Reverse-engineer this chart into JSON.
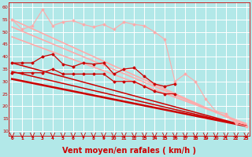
{
  "background_color": "#b2e8e8",
  "grid_color": "#ffffff",
  "xlabel": "Vent moyen/en rafales ( km/h )",
  "xlabel_color": "#cc0000",
  "xlabel_fontsize": 7,
  "tick_color": "#cc0000",
  "ylabel_ticks": [
    10,
    15,
    20,
    25,
    30,
    35,
    40,
    45,
    50,
    55,
    60
  ],
  "xlabel_ticks": [
    0,
    1,
    2,
    3,
    4,
    5,
    6,
    7,
    8,
    9,
    10,
    11,
    12,
    13,
    14,
    15,
    16,
    17,
    18,
    19,
    20,
    21,
    22,
    23
  ],
  "xlim": [
    -0.3,
    23.3
  ],
  "ylim": [
    8,
    62
  ],
  "lines": [
    {
      "x": [
        0,
        1,
        2,
        3,
        4,
        5,
        6,
        7,
        8,
        9,
        10,
        11,
        12,
        13,
        14,
        15,
        16,
        17,
        18,
        19,
        20,
        21,
        22,
        23
      ],
      "y": [
        55,
        51,
        52.5,
        59,
        52.5,
        54,
        54.5,
        53,
        52,
        53,
        51,
        54,
        53,
        52.5,
        50,
        47,
        30,
        33,
        30,
        23,
        18,
        17,
        13,
        12
      ],
      "color": "#ffaaaa",
      "linewidth": 0.8,
      "marker": "D",
      "markersize": 1.5,
      "linestyle": "-"
    },
    {
      "x": [
        0,
        23
      ],
      "y": [
        55,
        12
      ],
      "color": "#ffaaaa",
      "linewidth": 1.2,
      "marker": null,
      "markersize": 0,
      "linestyle": "-"
    },
    {
      "x": [
        0,
        23
      ],
      "y": [
        52,
        12.5
      ],
      "color": "#ffaaaa",
      "linewidth": 1.2,
      "marker": null,
      "markersize": 0,
      "linestyle": "-"
    },
    {
      "x": [
        0,
        23
      ],
      "y": [
        48,
        13
      ],
      "color": "#ffaaaa",
      "linewidth": 1.2,
      "marker": null,
      "markersize": 0,
      "linestyle": "-"
    },
    {
      "x": [
        0,
        1,
        2,
        3,
        4,
        5,
        6,
        7,
        8,
        9,
        10,
        11,
        12,
        13,
        14,
        15,
        16
      ],
      "y": [
        37.5,
        37.5,
        37.5,
        40,
        41,
        37,
        36,
        37.5,
        37,
        37.5,
        33,
        35,
        35.5,
        32,
        29,
        28,
        29
      ],
      "color": "#cc0000",
      "linewidth": 0.9,
      "marker": "D",
      "markersize": 1.5,
      "linestyle": "-"
    },
    {
      "x": [
        0,
        1,
        2,
        3,
        4,
        5,
        6,
        7,
        8,
        9,
        10,
        11,
        12,
        13,
        14,
        15,
        16
      ],
      "y": [
        33.5,
        33.5,
        33.5,
        33.5,
        35,
        33,
        33,
        33,
        33,
        33,
        30,
        30,
        30,
        28,
        26,
        25,
        25
      ],
      "color": "#cc0000",
      "linewidth": 0.9,
      "marker": "D",
      "markersize": 1.5,
      "linestyle": "-"
    },
    {
      "x": [
        0,
        23
      ],
      "y": [
        37.5,
        12
      ],
      "color": "#cc0000",
      "linewidth": 1.1,
      "marker": null,
      "markersize": 0,
      "linestyle": "-"
    },
    {
      "x": [
        0,
        23
      ],
      "y": [
        34,
        12
      ],
      "color": "#cc0000",
      "linewidth": 1.1,
      "marker": null,
      "markersize": 0,
      "linestyle": "-"
    },
    {
      "x": [
        0,
        23
      ],
      "y": [
        31,
        12
      ],
      "color": "#cc0000",
      "linewidth": 1.8,
      "marker": null,
      "markersize": 0,
      "linestyle": "-"
    }
  ],
  "arrow_color": "#cc0000",
  "title": ""
}
